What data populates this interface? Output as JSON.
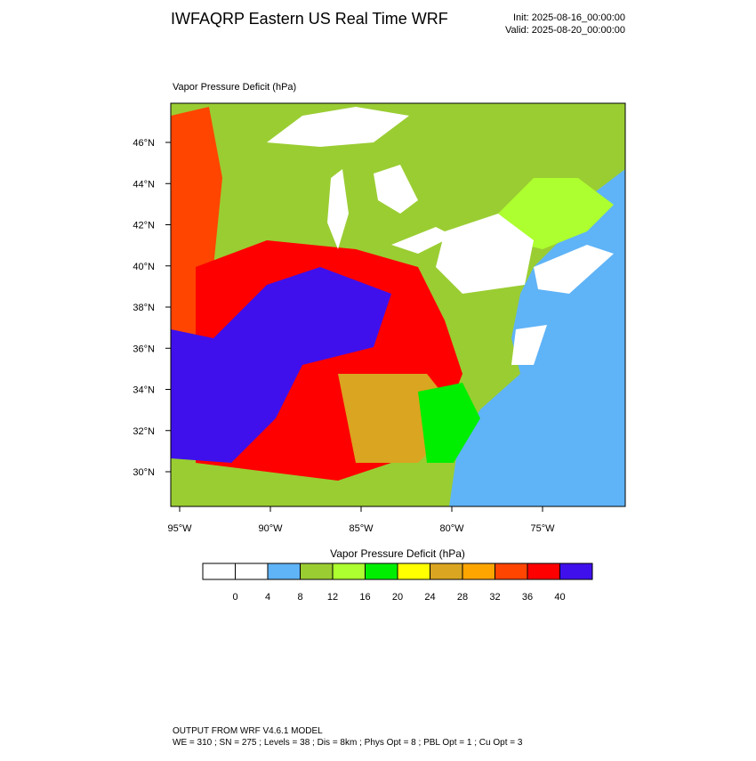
{
  "header": {
    "title": "IWFAQRP Eastern US Real Time WRF",
    "init": "Init: 2025-08-16_00:00:00",
    "valid": "Valid: 2025-08-20_00:00:00"
  },
  "map": {
    "field_label": "Vapor Pressure Deficit   (hPa)",
    "lat_labels": [
      "46°N",
      "44°N",
      "42°N",
      "40°N",
      "38°N",
      "36°N",
      "34°N",
      "32°N",
      "30°N"
    ],
    "lon_labels": [
      "95°W",
      "90°W",
      "85°W",
      "80°W",
      "75°W"
    ]
  },
  "colorbar": {
    "title": "Vapor Pressure Deficit  (hPa)",
    "colors": [
      "#ffffff",
      "#ffffff",
      "#5fb3f7",
      "#9acd32",
      "#adff2f",
      "#00ee00",
      "#ffff00",
      "#daa520",
      "#ffa500",
      "#ff4500",
      "#ff0000",
      "#3f10ec"
    ],
    "labels": [
      0,
      4,
      8,
      12,
      16,
      20,
      24,
      28,
      32,
      36,
      40
    ]
  },
  "footer": {
    "line1": "OUTPUT FROM WRF V4.6.1 MODEL",
    "line2": "WE = 310 ; SN = 275 ; Levels = 38 ; Dis = 8km ; Phys Opt = 8 ; PBL Opt = 1 ; Cu Opt = 3"
  }
}
